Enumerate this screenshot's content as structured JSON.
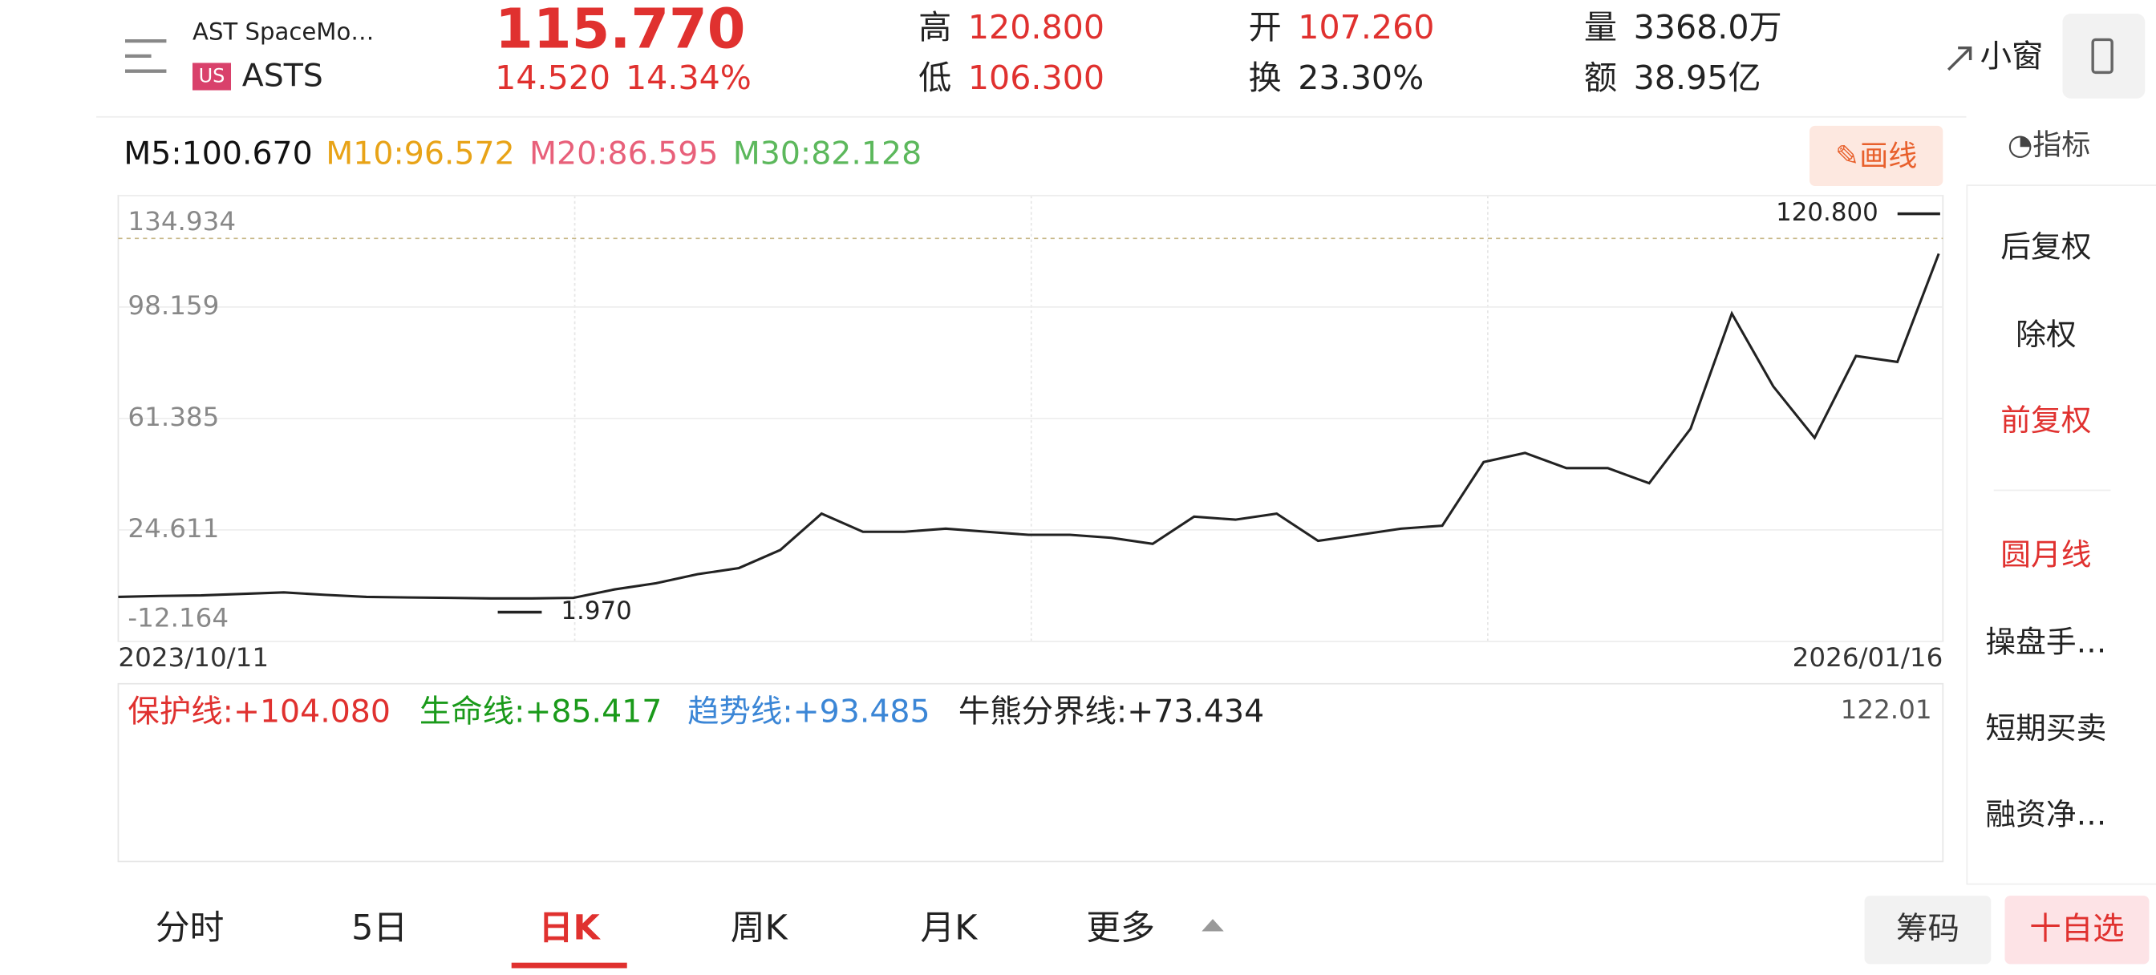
{
  "header": {
    "name": "AST SpaceMo…",
    "market": "US",
    "ticker": "ASTS",
    "price": "115.770",
    "change": "14.520",
    "change_pct": "14.34%",
    "stats": [
      {
        "label": "高",
        "value": "120.800"
      },
      {
        "label": "低",
        "value": "106.300"
      },
      {
        "label": "开",
        "value": "107.260"
      },
      {
        "label": "换",
        "value": "23.30%"
      },
      {
        "label": "量",
        "value": "3368.0万"
      },
      {
        "label": "额",
        "value": "38.95亿"
      }
    ],
    "mini_window": "小窗"
  },
  "ma_labels": [
    "M5:100.670",
    "M10:96.572",
    "M20:86.595",
    "M30:82.128"
  ],
  "draw_button": "画线",
  "indicator_button": "指标",
  "sidebar": [
    "后复权",
    "除权",
    "前复权",
    "圆月线",
    "操盘手…",
    "短期买卖",
    "融资净…"
  ],
  "chart_data": {
    "type": "line",
    "color": "#222",
    "values": [
      2.5,
      2.8,
      3,
      3.5,
      4,
      3.2,
      2.5,
      2.3,
      2.2,
      2,
      2,
      2.2,
      5,
      7,
      10,
      12,
      18,
      30,
      24,
      24,
      25,
      24,
      23,
      23,
      22,
      20,
      29,
      28,
      30,
      21,
      23,
      25,
      26,
      47,
      50,
      45,
      45,
      40,
      58,
      96,
      72,
      55,
      82,
      80,
      115.77
    ],
    "ylim": [
      -12.164,
      134.934
    ],
    "yticks": [
      {
        "value": 134.934,
        "label": "134.934"
      },
      {
        "value": 98.159,
        "label": "98.159"
      },
      {
        "value": 61.385,
        "label": "61.385"
      },
      {
        "value": 24.611,
        "label": "24.611"
      },
      {
        "value": -12.164,
        "label": "-12.164"
      }
    ],
    "high_mark": {
      "value": 120.8,
      "label": "120.800"
    },
    "low_mark": {
      "value": 1.97,
      "label": "1.970"
    },
    "start_date": "2023/10/11",
    "end_date": "2026/01/16"
  },
  "indicator": {
    "labels": [
      "保护线:+104.080",
      "生命线:+85.417",
      "趋势线:+93.485",
      "牛熊分界线:+73.434"
    ],
    "max": "122.01"
  },
  "tabs": [
    "分时",
    "5日",
    "日K",
    "周K",
    "月K",
    "更多"
  ],
  "buttons": [
    "筹码",
    "十自选"
  ]
}
